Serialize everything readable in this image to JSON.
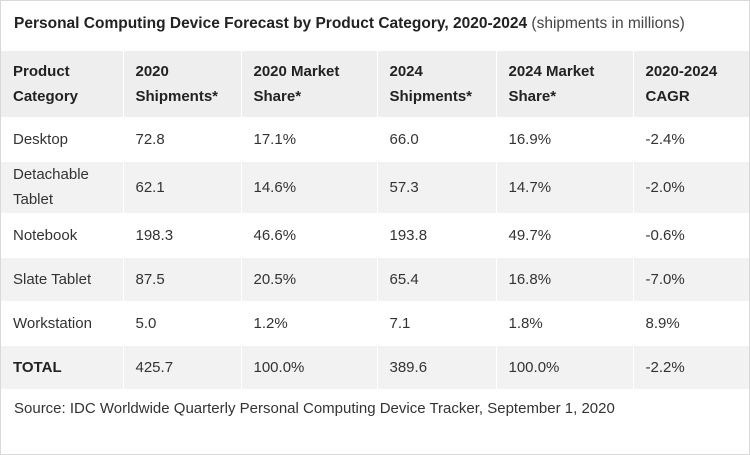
{
  "title": {
    "main": "Personal Computing Device Forecast by Product Category, 2020-2024",
    "sub": " (shipments in millions)"
  },
  "header": [
    "Product Category",
    "2020 Shipments*",
    "2020 Market Share*",
    "2024 Shipments*",
    "2024 Market Share*",
    "2020-2024 CAGR"
  ],
  "rows": [
    [
      "Desktop",
      "72.8",
      "17.1%",
      "66.0",
      "16.9%",
      "-2.4%"
    ],
    [
      "Detachable Tablet",
      "62.1",
      "14.6%",
      "57.3",
      "14.7%",
      "-2.0%"
    ],
    [
      "Notebook",
      "198.3",
      "46.6%",
      "193.8",
      "49.7%",
      "-0.6%"
    ],
    [
      "Slate Tablet",
      "87.5",
      "20.5%",
      "65.4",
      "16.8%",
      "-7.0%"
    ],
    [
      "Workstation",
      "5.0",
      "1.2%",
      "7.1",
      "1.8%",
      "8.9%"
    ],
    [
      "TOTAL",
      "425.7",
      "100.0%",
      "389.6",
      "100.0%",
      "-2.2%"
    ]
  ],
  "source": "Source: IDC Worldwide Quarterly Personal Computing Device Tracker, September 1, 2020"
}
